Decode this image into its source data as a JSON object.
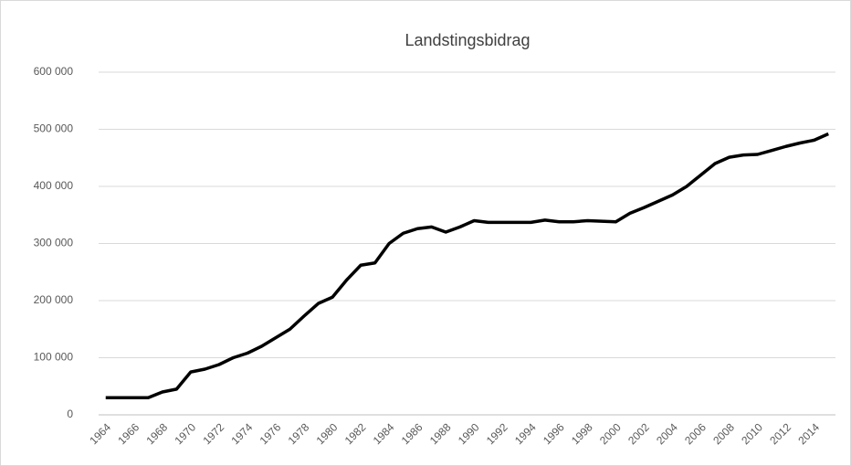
{
  "chart_data": {
    "type": "line",
    "title": "Landstingsbidrag",
    "categories": [
      "1964",
      null,
      "1966",
      null,
      "1968",
      null,
      "1970",
      null,
      "1972",
      null,
      "1974",
      null,
      "1976",
      null,
      "1978",
      null,
      "1980",
      null,
      "1982",
      null,
      "1984",
      null,
      "1986",
      null,
      "1988",
      null,
      "1990",
      null,
      "1992",
      null,
      "1994",
      null,
      "1996",
      null,
      "1998",
      null,
      "2000",
      null,
      "2002",
      null,
      "2004",
      null,
      "2006",
      null,
      "2008",
      null,
      "2010",
      null,
      "2012",
      null,
      "2014",
      null
    ],
    "series": [
      {
        "name": "Landstingsbidrag",
        "color": "#000000",
        "values": [
          30000,
          30000,
          30000,
          30000,
          40000,
          45000,
          75000,
          80000,
          88000,
          100000,
          108000,
          120000,
          135000,
          150000,
          173000,
          195000,
          206000,
          236000,
          262000,
          266000,
          300000,
          318000,
          326000,
          329000,
          320000,
          329000,
          340000,
          337000,
          337000,
          337000,
          337000,
          341000,
          338000,
          338000,
          340000,
          339000,
          338000,
          353000,
          363000,
          374000,
          385000,
          400000,
          420000,
          440000,
          451000,
          455000,
          456000,
          463000,
          470000,
          476000,
          481000,
          492000
        ]
      }
    ],
    "ylim": [
      0,
      600000
    ],
    "yticks": [
      0,
      {
        "value": 100000,
        "label": "100 000"
      },
      {
        "value": 200000,
        "label": "200 000"
      },
      {
        "value": 300000,
        "label": "300 000"
      },
      {
        "value": 400000,
        "label": "400 000"
      },
      {
        "value": 500000,
        "label": "500 000"
      },
      {
        "value": 600000,
        "label": "600 000"
      }
    ],
    "grid": true
  }
}
